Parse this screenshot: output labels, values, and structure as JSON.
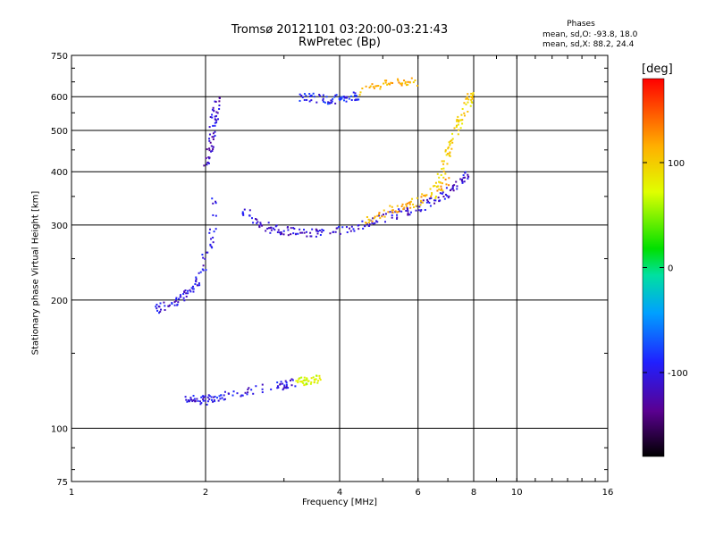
{
  "header": {
    "title_line1": "Tromsø 20121101 03:20:00-03:21:43",
    "title_line2": "RwPretec (Bp)"
  },
  "stats": {
    "heading": "Phases",
    "o_mode": "mean, sd,O: -93.8, 18.0",
    "x_mode": "mean, sd,X:  88.2, 24.4"
  },
  "colorbar": {
    "label": "[deg]",
    "ticks": [
      "100",
      "0",
      "-100"
    ],
    "tick_values": [
      100,
      0,
      -100
    ],
    "range": [
      -180,
      180
    ]
  },
  "chart_data": {
    "type": "scatter",
    "xlabel": "Frequency [MHz]",
    "ylabel": "Stationary phase Virtual Height [km]",
    "x_scale": "log",
    "y_scale": "log",
    "xlim": [
      1,
      16
    ],
    "ylim": [
      75,
      750
    ],
    "x_ticks": [
      1,
      2,
      4,
      6,
      8,
      10,
      16
    ],
    "x_tick_labels": [
      "1",
      "2",
      "4",
      "6",
      "8",
      "10",
      "16"
    ],
    "y_ticks": [
      75,
      100,
      200,
      300,
      400,
      500,
      600,
      750
    ],
    "y_tick_labels": [
      "75",
      "100",
      "200",
      "300",
      "400",
      "500",
      "600",
      "750"
    ],
    "grid": true,
    "color_variable": "phase [deg]",
    "traces": [
      {
        "x": [
          1.8,
          1.9,
          2.0,
          2.1,
          2.3,
          2.6,
          3.0,
          3.2
        ],
        "y": [
          118,
          117,
          116,
          118,
          120,
          123,
          126,
          128
        ],
        "phase": -110
      },
      {
        "x": [
          3.2,
          3.35,
          3.5,
          3.6
        ],
        "y": [
          128,
          129,
          130,
          131
        ],
        "phase": 60
      },
      {
        "x": [
          2.4,
          2.6,
          2.8,
          3.0,
          3.3,
          3.6,
          4.0,
          4.5,
          5.0,
          5.5,
          6.0,
          6.5,
          7.0,
          7.5,
          7.7
        ],
        "y": [
          330,
          305,
          295,
          290,
          287,
          287,
          292,
          300,
          310,
          320,
          330,
          340,
          355,
          375,
          395
        ],
        "phase": -115
      },
      {
        "x": [
          4.5,
          5.0,
          5.5,
          6.0,
          6.5,
          7.0
        ],
        "y": [
          305,
          320,
          330,
          340,
          360,
          380
        ],
        "phase": 110
      },
      {
        "x": [
          1.55,
          1.65,
          1.75,
          1.85,
          1.95,
          2.05,
          2.1
        ],
        "y": [
          190,
          195,
          200,
          210,
          230,
          270,
          340
        ],
        "phase": -110
      },
      {
        "x": [
          2.0,
          2.05,
          2.08,
          2.1,
          2.12
        ],
        "y": [
          400,
          450,
          500,
          550,
          600
        ],
        "phase": -120
      },
      {
        "x": [
          3.2,
          3.5,
          3.8,
          4.0,
          4.2,
          4.4
        ],
        "y": [
          600,
          595,
          590,
          595,
          600,
          605
        ],
        "phase": -100
      },
      {
        "x": [
          6.5,
          6.8,
          7.0,
          7.3,
          7.5,
          7.8,
          7.9
        ],
        "y": [
          350,
          400,
          450,
          500,
          540,
          590,
          610
        ],
        "phase": 90
      },
      {
        "x": [
          4.5,
          5.0,
          5.5,
          6.0
        ],
        "y": [
          620,
          640,
          650,
          650
        ],
        "phase": 110
      }
    ]
  }
}
